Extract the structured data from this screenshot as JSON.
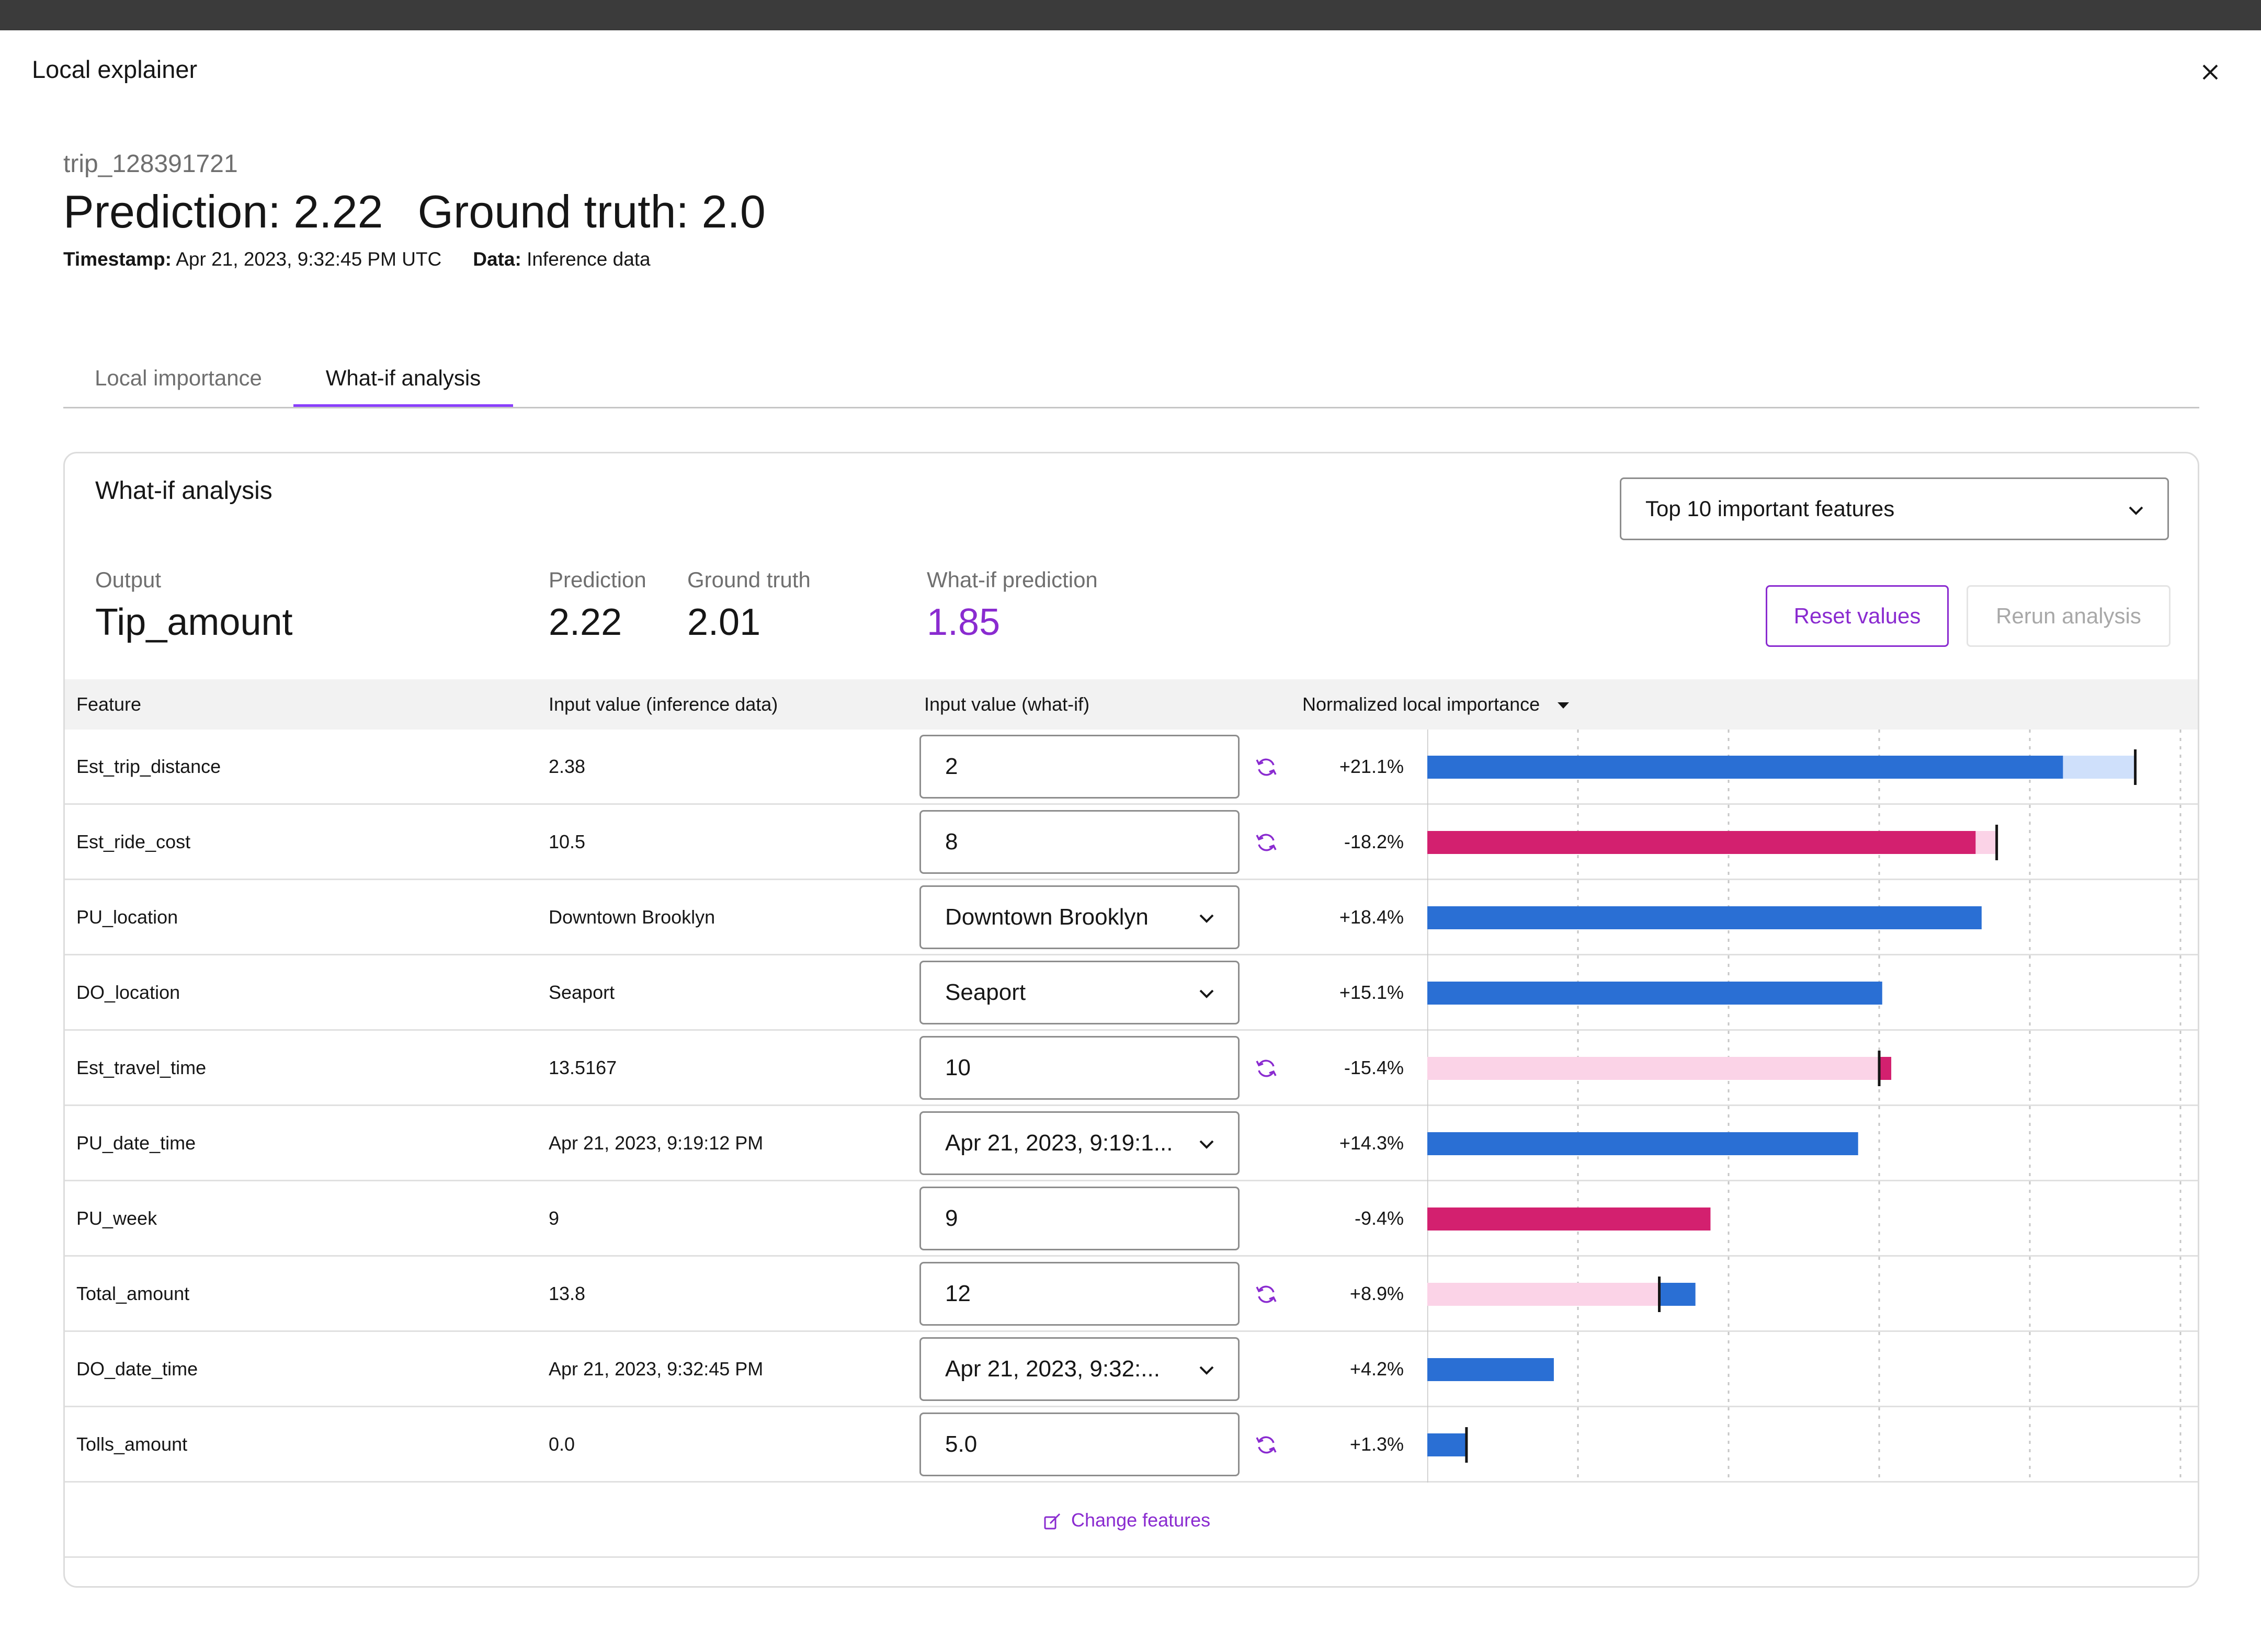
{
  "modal": {
    "title": "Local explainer"
  },
  "record": {
    "id": "trip_128391721",
    "prediction_text": "Prediction: 2.22",
    "ground_truth_text": "Ground truth: 2.0",
    "timestamp_label": "Timestamp:",
    "timestamp_value": "Apr 21, 2023, 9:32:45 PM UTC",
    "data_label": "Data:",
    "data_value": "Inference data"
  },
  "tabs": [
    {
      "label": "Local importance",
      "active": false
    },
    {
      "label": "What-if analysis",
      "active": true
    }
  ],
  "whatif": {
    "title": "What-if analysis",
    "feature_select": "Top 10 important features",
    "output_label": "Output",
    "output_value": "Tip_amount",
    "prediction_label": "Prediction",
    "prediction_value": "2.22",
    "ground_truth_label": "Ground truth",
    "ground_truth_value": "2.01",
    "whatif_prediction_label": "What-if prediction",
    "whatif_prediction_value": "1.85",
    "reset_button": "Reset values",
    "rerun_button": "Rerun analysis",
    "change_features": "Change features"
  },
  "table": {
    "headers": {
      "feature": "Feature",
      "input": "Input value (inference data)",
      "whatif": "Input value (what-if)",
      "importance": "Normalized local importance"
    },
    "rows": [
      {
        "feature": "Est_trip_distance",
        "input": "2.38",
        "whatif": "2",
        "control": "text",
        "reset": true,
        "pct": "+21.1%"
      },
      {
        "feature": "Est_ride_cost",
        "input": "10.5",
        "whatif": "8",
        "control": "text",
        "reset": true,
        "pct": "-18.2%"
      },
      {
        "feature": "PU_location",
        "input": "Downtown Brooklyn",
        "whatif": "Downtown Brooklyn",
        "control": "select",
        "reset": false,
        "pct": "+18.4%"
      },
      {
        "feature": "DO_location",
        "input": "Seaport",
        "whatif": "Seaport",
        "control": "select",
        "reset": false,
        "pct": "+15.1%"
      },
      {
        "feature": "Est_travel_time",
        "input": "13.5167",
        "whatif": "10",
        "control": "text",
        "reset": true,
        "pct": "-15.4%"
      },
      {
        "feature": "PU_date_time",
        "input": "Apr 21, 2023, 9:19:12 PM",
        "whatif": "Apr 21, 2023, 9:19:1...",
        "control": "select",
        "reset": false,
        "pct": "+14.3%"
      },
      {
        "feature": "PU_week",
        "input": "9",
        "whatif": "9",
        "control": "text",
        "reset": false,
        "pct": "-9.4%"
      },
      {
        "feature": "Total_amount",
        "input": "13.8",
        "whatif": "12",
        "control": "text",
        "reset": true,
        "pct": "+8.9%"
      },
      {
        "feature": "DO_date_time",
        "input": "Apr 21, 2023, 9:32:45 PM",
        "whatif": "Apr 21, 2023, 9:32:...",
        "control": "select",
        "reset": false,
        "pct": "+4.2%"
      },
      {
        "feature": "Tolls_amount",
        "input": "0.0",
        "whatif": "5.0",
        "control": "text",
        "reset": true,
        "pct": "+1.3%"
      }
    ]
  },
  "chart_data": {
    "type": "bar",
    "orientation": "horizontal",
    "categories": [
      "Est_trip_distance",
      "Est_ride_cost",
      "PU_location",
      "DO_location",
      "Est_travel_time",
      "PU_date_time",
      "PU_week",
      "Total_amount",
      "DO_date_time",
      "Tolls_amount"
    ],
    "series": [
      {
        "name": "",
        "values": [
          21.1,
          18.2,
          18.4,
          15.1,
          15.4,
          14.3,
          9.4,
          8.9,
          4.2,
          1.3
        ],
        "signs": [
          "+",
          "-",
          "+",
          "+",
          "-",
          "+",
          "-",
          "+",
          "+",
          "+"
        ]
      }
    ],
    "original_values": [
      23.5,
      18.9,
      null,
      null,
      15.0,
      null,
      null,
      7.7,
      null,
      1.3
    ],
    "xlim": [
      0,
      25
    ],
    "grid": true,
    "colors": {
      "positive": "#2a6fd4",
      "negative": "#d3206f",
      "positive_light": "#cfe0fb",
      "negative_light": "#fbd3e7",
      "marker": "#161616"
    }
  },
  "colors": {
    "accent": "#8a2bd0",
    "tab_underline": "#8a3ffc",
    "topbar": "#3b3b3b"
  },
  "icons": {
    "close": "close-icon",
    "chevron": "chevron-down-icon",
    "reset": "reset-icon",
    "sort": "sort-down-icon",
    "edit": "edit-icon"
  }
}
